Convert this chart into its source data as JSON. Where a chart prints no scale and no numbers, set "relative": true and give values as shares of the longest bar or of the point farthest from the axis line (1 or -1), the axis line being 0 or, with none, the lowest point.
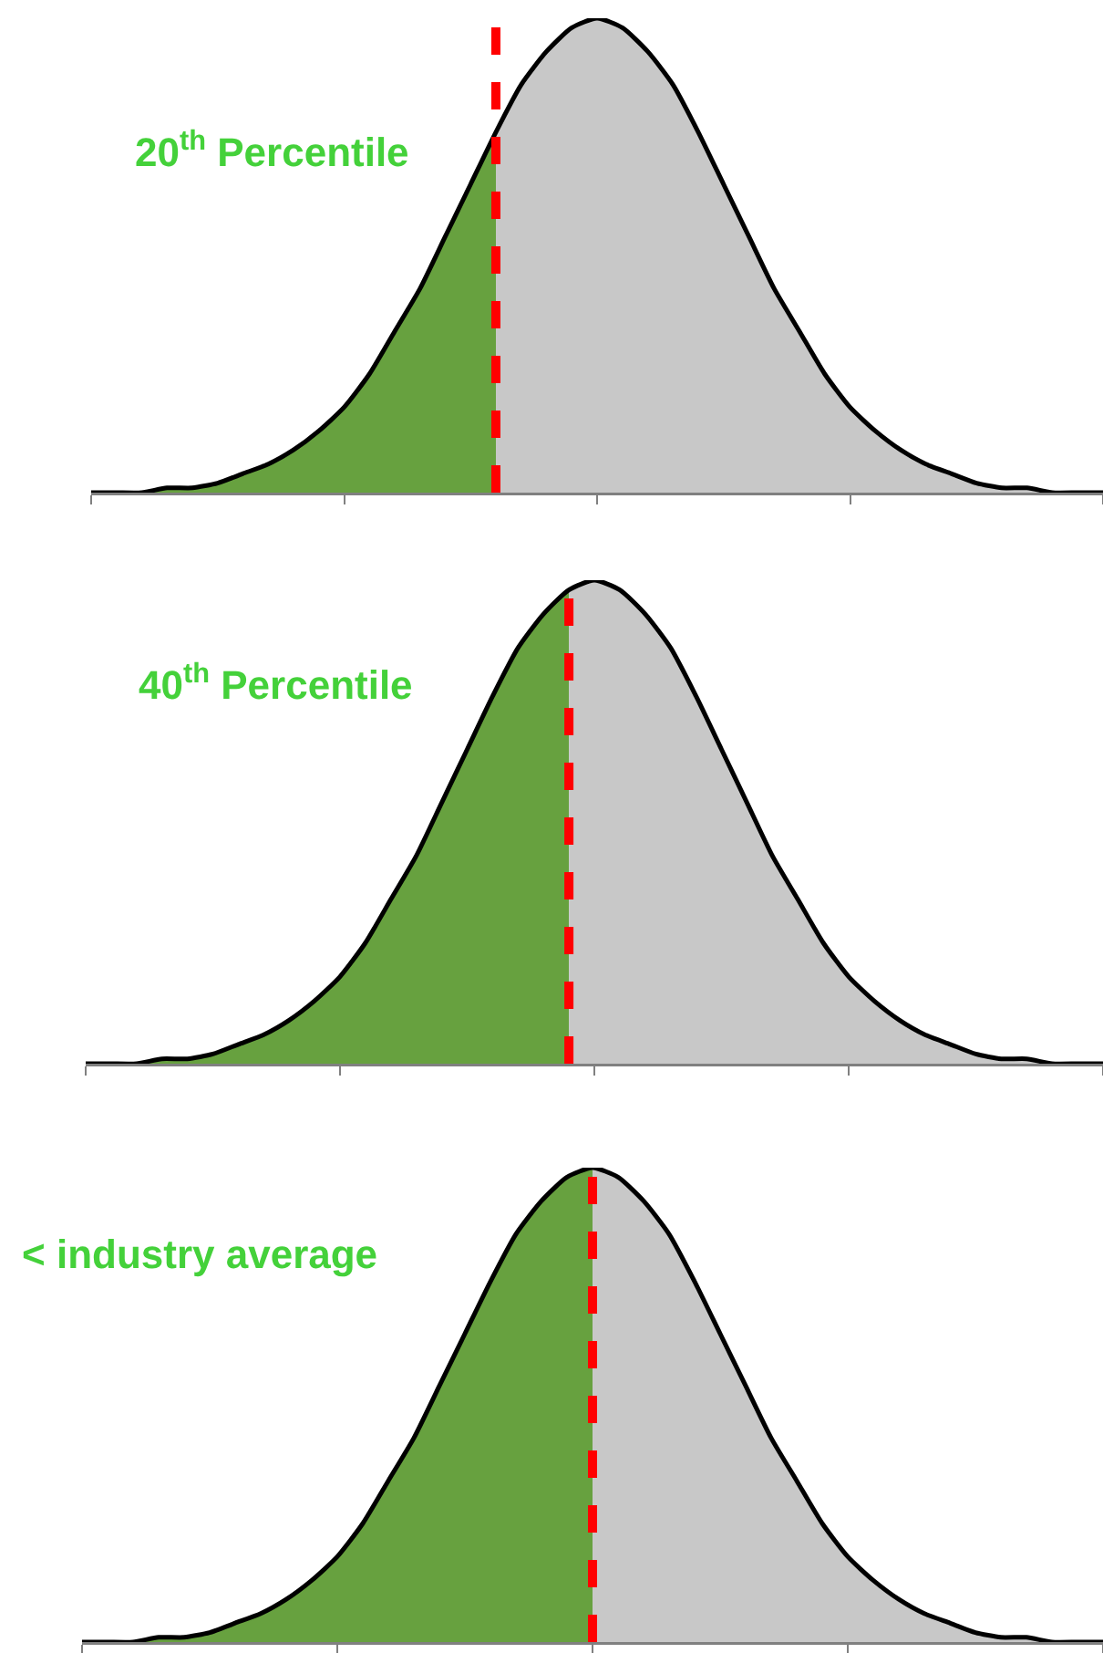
{
  "chart_data": [
    {
      "type": "area",
      "relative": true,
      "categories": [
        null,
        null,
        null,
        null,
        null,
        null,
        null,
        null,
        null,
        null,
        null,
        null,
        null,
        null,
        null,
        null,
        null,
        null,
        null,
        null,
        null,
        null,
        null,
        null,
        null,
        null,
        null,
        null,
        null,
        null,
        null,
        null,
        null,
        null,
        null,
        null,
        null,
        null,
        null,
        null,
        null
      ],
      "series": [
        {
          "color": "#67a13f",
          "values": [
            0,
            0,
            0,
            0.01,
            0.01,
            0.02,
            0.04,
            0.06,
            0.09,
            0.13,
            0.18,
            0.25,
            0.34,
            0.43,
            0.54,
            0.65,
            0.76,
            null,
            null,
            null,
            null,
            null,
            null,
            null,
            null,
            null,
            null,
            null,
            null,
            null,
            null,
            null,
            null,
            null,
            null,
            null,
            null,
            null,
            null,
            null,
            null
          ]
        },
        {
          "color": "#c8c8c8",
          "values": [
            null,
            null,
            null,
            null,
            null,
            null,
            null,
            null,
            null,
            null,
            null,
            null,
            null,
            null,
            null,
            null,
            0.76,
            0.86,
            0.93,
            0.98,
            1,
            0.98,
            0.93,
            0.86,
            0.76,
            0.65,
            0.54,
            0.43,
            0.34,
            0.25,
            0.18,
            0.13,
            0.09,
            0.06,
            0.04,
            0.02,
            0.01,
            0.01,
            0,
            0,
            0
          ]
        },
        {
          "type": "line",
          "color": "#000000",
          "values": [
            0,
            0,
            0,
            0.01,
            0.01,
            0.02,
            0.04,
            0.06,
            0.09,
            0.13,
            0.18,
            0.25,
            0.34,
            0.43,
            0.54,
            0.65,
            0.76,
            0.86,
            0.93,
            0.98,
            1,
            0.98,
            0.93,
            0.86,
            0.76,
            0.65,
            0.54,
            0.43,
            0.34,
            0.25,
            0.18,
            0.13,
            0.09,
            0.06,
            0.04,
            0.02,
            0.01,
            0.01,
            0,
            0,
            0
          ]
        }
      ],
      "annotations": [
        "20$^{th}$ Percentile"
      ]
    },
    {
      "type": "area",
      "relative": true,
      "categories": [
        null,
        null,
        null,
        null,
        null,
        null,
        null,
        null,
        null,
        null,
        null,
        null,
        null,
        null,
        null,
        null,
        null,
        null,
        null,
        null,
        null,
        null,
        null,
        null,
        null,
        null,
        null,
        null,
        null,
        null,
        null,
        null,
        null,
        null,
        null,
        null,
        null,
        null,
        null,
        null,
        null
      ],
      "series": [
        {
          "color": "#67a13f",
          "values": [
            0,
            0,
            0,
            0.01,
            0.01,
            0.02,
            0.04,
            0.06,
            0.09,
            0.13,
            0.18,
            0.25,
            0.34,
            0.43,
            0.54,
            0.65,
            0.76,
            0.86,
            0.93,
            0.98,
            null,
            null,
            null,
            null,
            null,
            null,
            null,
            null,
            null,
            null,
            null,
            null,
            null,
            null,
            null,
            null,
            null,
            null,
            null,
            null,
            null
          ]
        },
        {
          "color": "#c8c8c8",
          "values": [
            null,
            null,
            null,
            null,
            null,
            null,
            null,
            null,
            null,
            null,
            null,
            null,
            null,
            null,
            null,
            null,
            null,
            null,
            null,
            0.98,
            1,
            0.98,
            0.93,
            0.86,
            0.76,
            0.65,
            0.54,
            0.43,
            0.34,
            0.25,
            0.18,
            0.13,
            0.09,
            0.06,
            0.04,
            0.02,
            0.01,
            0.01,
            0,
            0,
            0
          ]
        },
        {
          "type": "line",
          "color": "#000000",
          "values": [
            0,
            0,
            0,
            0.01,
            0.01,
            0.02,
            0.04,
            0.06,
            0.09,
            0.13,
            0.18,
            0.25,
            0.34,
            0.43,
            0.54,
            0.65,
            0.76,
            0.86,
            0.93,
            0.98,
            1,
            0.98,
            0.93,
            0.86,
            0.76,
            0.65,
            0.54,
            0.43,
            0.34,
            0.25,
            0.18,
            0.13,
            0.09,
            0.06,
            0.04,
            0.02,
            0.01,
            0.01,
            0,
            0,
            0
          ]
        }
      ],
      "annotations": [
        "40$^{th}$ Percentile"
      ]
    },
    {
      "type": "area",
      "relative": true,
      "categories": [
        null,
        null,
        null,
        null,
        null,
        null,
        null,
        null,
        null,
        null,
        null,
        null,
        null,
        null,
        null,
        null,
        null,
        null,
        null,
        null,
        null,
        null,
        null,
        null,
        null,
        null,
        null,
        null,
        null,
        null,
        null,
        null,
        null,
        null,
        null,
        null,
        null,
        null,
        null,
        null,
        null
      ],
      "series": [
        {
          "color": "#67a13f",
          "values": [
            0,
            0,
            0,
            0.01,
            0.01,
            0.02,
            0.04,
            0.06,
            0.09,
            0.13,
            0.18,
            0.25,
            0.34,
            0.43,
            0.54,
            0.65,
            0.76,
            0.86,
            0.93,
            0.98,
            1,
            null,
            null,
            null,
            null,
            null,
            null,
            null,
            null,
            null,
            null,
            null,
            null,
            null,
            null,
            null,
            null,
            null,
            null,
            null,
            null
          ]
        },
        {
          "color": "#c8c8c8",
          "values": [
            null,
            null,
            null,
            null,
            null,
            null,
            null,
            null,
            null,
            null,
            null,
            null,
            null,
            null,
            null,
            null,
            null,
            null,
            null,
            null,
            1,
            0.98,
            0.93,
            0.86,
            0.76,
            0.65,
            0.54,
            0.43,
            0.34,
            0.25,
            0.18,
            0.13,
            0.09,
            0.06,
            0.04,
            0.02,
            0.01,
            0.01,
            0,
            0,
            0
          ]
        },
        {
          "type": "line",
          "color": "#000000",
          "values": [
            0,
            0,
            0,
            0.01,
            0.01,
            0.02,
            0.04,
            0.06,
            0.09,
            0.13,
            0.18,
            0.25,
            0.34,
            0.43,
            0.54,
            0.65,
            0.76,
            0.86,
            0.93,
            0.98,
            1,
            0.98,
            0.93,
            0.86,
            0.76,
            0.65,
            0.54,
            0.43,
            0.34,
            0.25,
            0.18,
            0.13,
            0.09,
            0.06,
            0.04,
            0.02,
            0.01,
            0.01,
            0,
            0,
            0
          ]
        }
      ],
      "annotations": [
        "< industry average"
      ]
    }
  ]
}
